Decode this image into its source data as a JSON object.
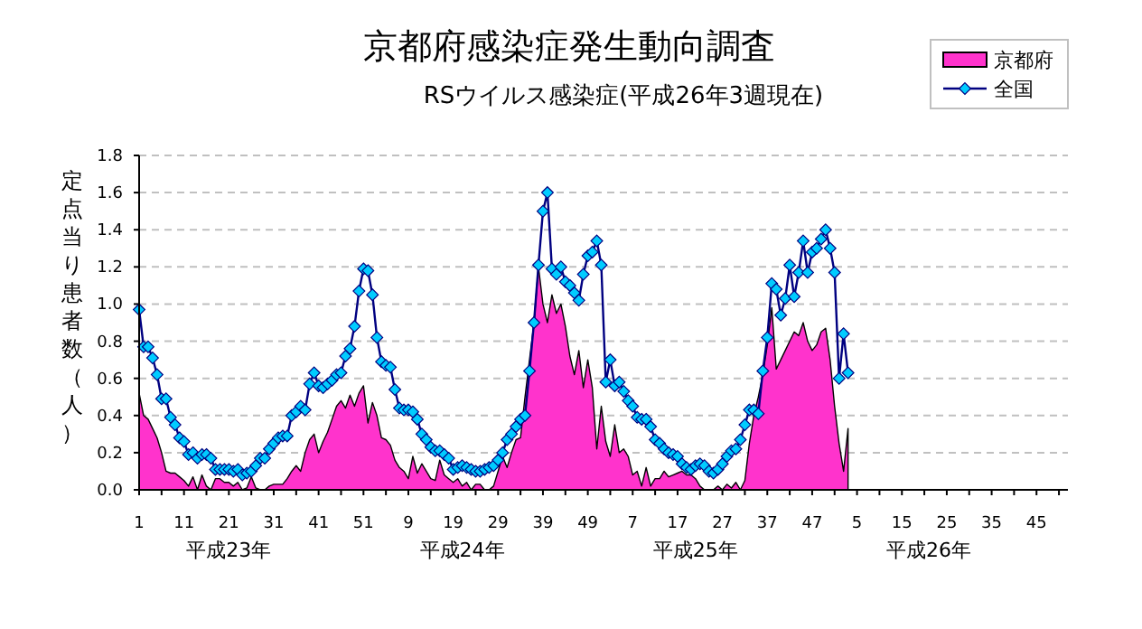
{
  "chart_data": {
    "type": "line",
    "title": "京都府感染症発生動向調査",
    "subtitle": "RSウイルス感染症(平成26年3週現在)",
    "ylabel": "定点当り患者数（人）",
    "annotations": [
      "平成23年",
      "平成24年",
      "平成25年",
      "平成26年"
    ],
    "categories": [
      "1",
      null,
      null,
      null,
      null,
      null,
      null,
      null,
      null,
      null,
      "11",
      null,
      null,
      null,
      null,
      null,
      null,
      null,
      null,
      null,
      "21",
      null,
      null,
      null,
      null,
      null,
      null,
      null,
      null,
      null,
      "31",
      null,
      null,
      null,
      null,
      null,
      null,
      null,
      null,
      null,
      "41",
      null,
      null,
      null,
      null,
      null,
      null,
      null,
      null,
      null,
      "51",
      null,
      null,
      null,
      null,
      null,
      null,
      null,
      null,
      null,
      "9",
      null,
      null,
      null,
      null,
      null,
      null,
      null,
      null,
      null,
      "19",
      null,
      null,
      null,
      null,
      null,
      null,
      null,
      null,
      null,
      "29",
      null,
      null,
      null,
      null,
      null,
      null,
      null,
      null,
      null,
      "39",
      null,
      null,
      null,
      null,
      null,
      null,
      null,
      null,
      null,
      "49",
      null,
      null,
      null,
      null,
      null,
      null,
      null,
      null,
      null,
      "7",
      null,
      null,
      null,
      null,
      null,
      null,
      null,
      null,
      null,
      "17",
      null,
      null,
      null,
      null,
      null,
      null,
      null,
      null,
      null,
      "27",
      null,
      null,
      null,
      null,
      null,
      null,
      null,
      null,
      null,
      "37",
      null,
      null,
      null,
      null,
      null,
      null,
      null,
      null,
      null,
      "47",
      null,
      null,
      null,
      null,
      null,
      null,
      null,
      null,
      null,
      "5",
      null,
      null,
      null,
      null,
      null,
      null,
      null,
      null,
      null,
      "15",
      null,
      null,
      null,
      null,
      null,
      null,
      null,
      null,
      null,
      "25",
      null,
      null,
      null,
      null,
      null,
      null,
      null,
      null,
      null,
      "35",
      null,
      null,
      null,
      null,
      null,
      null,
      null,
      null,
      null,
      "45",
      null,
      null,
      null,
      null,
      null,
      null,
      null
    ],
    "series": [
      {
        "name": "京都府",
        "type": "area",
        "color": "#ff33cc",
        "values": [
          0.52,
          0.4,
          0.38,
          0.33,
          0.28,
          0.2,
          0.1,
          0.09,
          0.09,
          0.07,
          0.05,
          0.02,
          0.07,
          0.0,
          0.08,
          0.02,
          0.0,
          0.06,
          0.06,
          0.04,
          0.04,
          0.02,
          0.04,
          0.0,
          0.01,
          0.07,
          0.01,
          0.0,
          0.0,
          0.02,
          0.03,
          0.03,
          0.03,
          0.06,
          0.1,
          0.13,
          0.1,
          0.2,
          0.27,
          0.3,
          0.2,
          0.26,
          0.31,
          0.38,
          0.45,
          0.48,
          0.44,
          0.51,
          0.45,
          0.52,
          0.56,
          0.36,
          0.47,
          0.4,
          0.28,
          0.27,
          0.24,
          0.16,
          0.12,
          0.1,
          0.06,
          0.18,
          0.09,
          0.14,
          0.1,
          0.06,
          0.05,
          0.16,
          0.08,
          0.06,
          0.04,
          0.06,
          0.02,
          0.04,
          0.0,
          0.03,
          0.03,
          0.0,
          0.0,
          0.02,
          0.1,
          0.18,
          0.12,
          0.2,
          0.27,
          0.28,
          0.5,
          0.7,
          0.9,
          1.2,
          1.0,
          0.9,
          1.05,
          0.95,
          1.0,
          0.88,
          0.72,
          0.62,
          0.75,
          0.55,
          0.7,
          0.55,
          0.22,
          0.45,
          0.26,
          0.18,
          0.35,
          0.2,
          0.22,
          0.18,
          0.08,
          0.1,
          0.02,
          0.12,
          0.02,
          0.06,
          0.06,
          0.1,
          0.07,
          0.08,
          0.09,
          0.1,
          0.08,
          0.08,
          0.06,
          0.02,
          0.0,
          0.0,
          0.0,
          0.02,
          0.0,
          0.03,
          0.01,
          0.04,
          0.0,
          0.05,
          0.25,
          0.4,
          0.5,
          0.62,
          0.78,
          0.98,
          0.65,
          0.7,
          0.75,
          0.8,
          0.85,
          0.83,
          0.9,
          0.8,
          0.75,
          0.78,
          0.85,
          0.87,
          0.7,
          0.45,
          0.25,
          0.1,
          0.33,
          null,
          null,
          null,
          null,
          null,
          null,
          null,
          null,
          null,
          null,
          null,
          null,
          null,
          null,
          null,
          null,
          null,
          null,
          null,
          null,
          null,
          null,
          null,
          null,
          null,
          null,
          null,
          null,
          null,
          null,
          null,
          null,
          null,
          null,
          null,
          null,
          null,
          null,
          null,
          null,
          null,
          null,
          null,
          null,
          null,
          null,
          null,
          null,
          null
        ]
      },
      {
        "name": "全国",
        "color": "#000080",
        "marker": "diamond",
        "values": [
          0.97,
          0.77,
          0.77,
          0.71,
          0.62,
          0.49,
          0.49,
          0.39,
          0.35,
          0.28,
          0.26,
          0.19,
          0.2,
          0.17,
          0.19,
          0.19,
          0.17,
          0.11,
          0.11,
          0.11,
          0.11,
          0.1,
          0.11,
          0.08,
          0.09,
          0.1,
          0.13,
          0.17,
          0.17,
          0.22,
          0.25,
          0.28,
          0.29,
          0.29,
          0.4,
          0.42,
          0.45,
          0.43,
          0.57,
          0.63,
          0.56,
          0.55,
          0.57,
          0.59,
          0.62,
          0.63,
          0.72,
          0.76,
          0.88,
          1.07,
          1.19,
          1.18,
          1.05,
          0.82,
          0.69,
          0.67,
          0.66,
          0.54,
          0.44,
          0.43,
          0.43,
          0.42,
          0.38,
          0.3,
          0.27,
          0.23,
          0.21,
          0.21,
          0.19,
          0.17,
          0.11,
          0.12,
          0.13,
          0.12,
          0.11,
          0.1,
          0.1,
          0.11,
          0.12,
          0.13,
          0.16,
          0.2,
          0.27,
          0.3,
          0.34,
          0.38,
          0.4,
          0.64,
          0.9,
          1.21,
          1.5,
          1.6,
          1.19,
          1.16,
          1.2,
          1.12,
          1.1,
          1.06,
          1.02,
          1.16,
          1.26,
          1.28,
          1.34,
          1.21,
          0.58,
          0.7,
          0.56,
          0.58,
          0.53,
          0.48,
          0.45,
          0.39,
          0.38,
          0.38,
          0.34,
          0.27,
          0.25,
          0.22,
          0.2,
          0.19,
          0.18,
          0.14,
          0.12,
          0.11,
          0.13,
          0.14,
          0.13,
          0.1,
          0.09,
          0.11,
          0.14,
          0.18,
          0.21,
          0.22,
          0.27,
          0.35,
          0.43,
          0.43,
          0.41,
          0.64,
          0.82,
          1.11,
          1.08,
          0.94,
          1.03,
          1.21,
          1.04,
          1.17,
          1.34,
          1.17,
          1.28,
          1.3,
          1.35,
          1.4,
          1.3,
          1.17,
          0.6,
          0.84,
          0.63,
          null,
          null,
          null,
          null,
          null,
          null,
          null,
          null,
          null,
          null,
          null,
          null,
          null,
          null,
          null,
          null,
          null,
          null,
          null,
          null,
          null,
          null,
          null,
          null,
          null,
          null,
          null,
          null,
          null,
          null,
          null,
          null,
          null,
          null,
          null,
          null,
          null,
          null,
          null,
          null,
          null,
          null,
          null,
          null,
          null,
          null,
          null,
          null,
          null
        ]
      }
    ],
    "ylim": [
      0,
      1.8
    ],
    "yticks": [
      {
        "value": 0,
        "label": "0.0"
      },
      {
        "value": 0.2,
        "label": "0.2"
      },
      {
        "value": 0.4,
        "label": "0.4"
      },
      {
        "value": 0.6,
        "label": "0.6"
      },
      {
        "value": 0.8,
        "label": "0.8"
      },
      {
        "value": 1,
        "label": "1.0"
      },
      {
        "value": 1.2,
        "label": "1.2"
      },
      {
        "value": 1.4,
        "label": "1.4"
      },
      {
        "value": 1.6,
        "label": "1.6"
      },
      {
        "value": 1.8,
        "label": "1.8"
      }
    ],
    "grid": "y",
    "legend": "top right"
  }
}
